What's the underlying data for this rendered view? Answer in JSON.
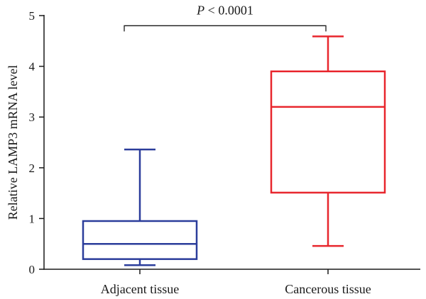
{
  "chart_data": {
    "type": "box",
    "ylabel": "Relative LAMP3 mRNA level",
    "xlabel": "",
    "ylim": [
      0,
      5
    ],
    "y_ticks": [
      0,
      1,
      2,
      3,
      4,
      5
    ],
    "grid": false,
    "categories": [
      "Adjacent tissue",
      "Cancerous tissue"
    ],
    "series": [
      {
        "category": "Adjacent tissue",
        "color": "#2b3d9b",
        "min": 0.08,
        "q1": 0.2,
        "median": 0.5,
        "q3": 0.95,
        "max": 2.36
      },
      {
        "category": "Cancerous tissue",
        "color": "#e8262d",
        "min": 0.46,
        "q1": 1.51,
        "median": 3.2,
        "q3": 3.9,
        "max": 4.59
      }
    ],
    "annotation": {
      "p_letter": "P",
      "p_rest": " < 0.0001",
      "bracket_y": 4.8
    }
  }
}
